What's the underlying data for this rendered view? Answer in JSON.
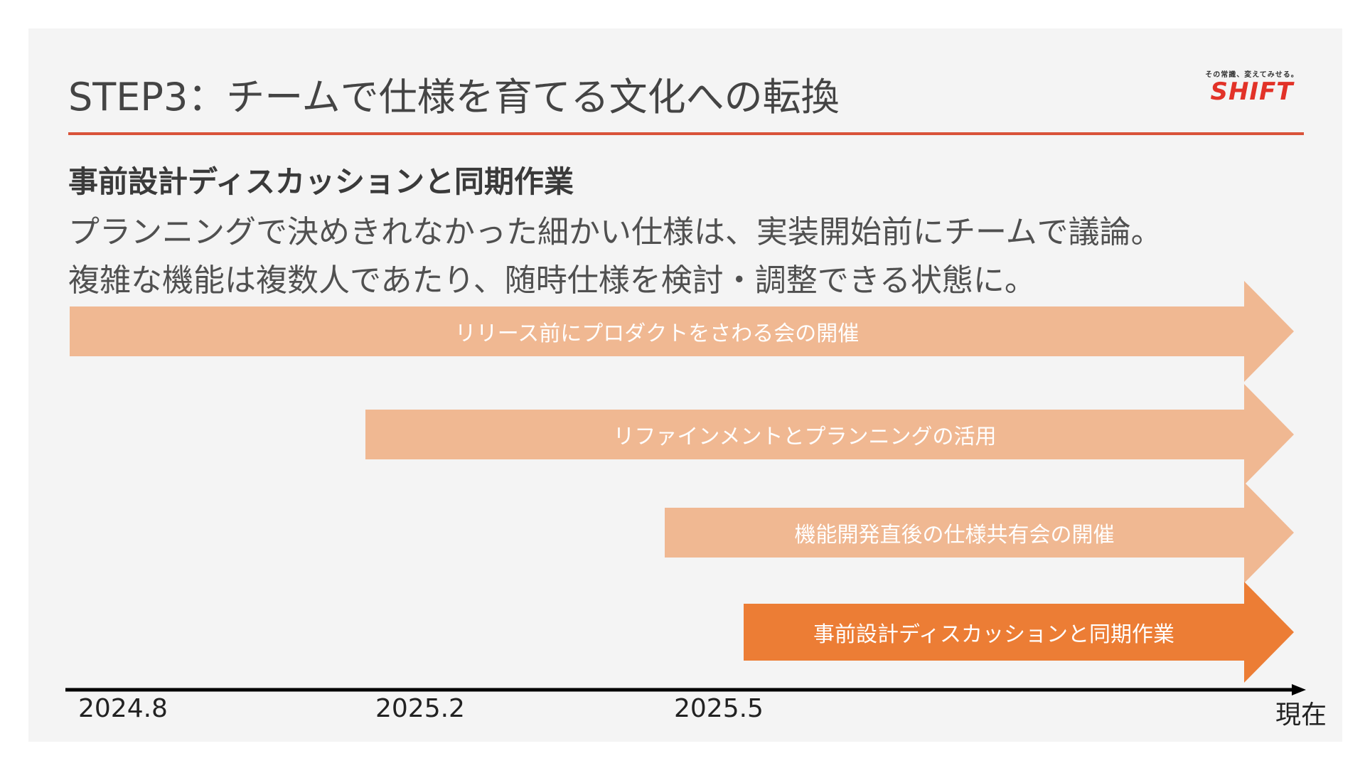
{
  "slide": {
    "title": "STEP3：チームで仕様を育てる文化への転換",
    "logo": {
      "tagline": "その常識、変えてみせる。",
      "name": "SHIFT"
    },
    "subtitle": "事前設計ディスカッションと同期作業",
    "body": [
      "プランニングで決めきれなかった細かい仕様は、実装開始前にチームで議論。",
      "複雑な機能は複数人であたり、随時仕様を検討・調整できる状態に。"
    ]
  },
  "timeline": {
    "arrows": [
      {
        "label": "リリース前にプロダクトをさわる会の開催",
        "color": "#f0b892"
      },
      {
        "label": "リファインメントとプランニングの活用",
        "color": "#f0b892"
      },
      {
        "label": "機能開発直後の仕様共有会の開催",
        "color": "#f0b892"
      },
      {
        "label": "事前設計ディスカッションと同期作業",
        "color": "#ec7d35"
      }
    ],
    "ticks": [
      "2024.8",
      "2025.2",
      "2025.5",
      "現在"
    ]
  },
  "colors": {
    "accent": "#d9533a",
    "arrow_light": "#f0b892",
    "arrow_highlight": "#ec7d35",
    "logo_red": "#e23228"
  }
}
